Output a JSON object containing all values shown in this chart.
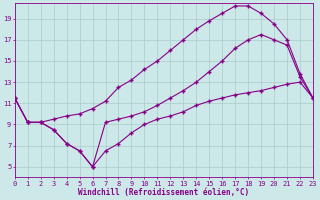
{
  "background_color": "#cce8e8",
  "grid_color": "#aacccc",
  "line_color": "#880088",
  "xlabel": "Windchill (Refroidissement éolien,°C)",
  "xlabel_fontsize": 5.5,
  "tick_fontsize": 5,
  "xmin": 0,
  "xmax": 23,
  "ymin": 4,
  "ymax": 20.5,
  "yticks": [
    5,
    7,
    9,
    11,
    13,
    15,
    17,
    19
  ],
  "xticks": [
    0,
    1,
    2,
    3,
    4,
    5,
    6,
    7,
    8,
    9,
    10,
    11,
    12,
    13,
    14,
    15,
    16,
    17,
    18,
    19,
    20,
    21,
    22,
    23
  ],
  "line1_x": [
    0,
    1,
    2,
    3,
    4,
    5,
    6,
    7,
    8,
    9,
    10,
    11,
    12,
    13,
    14,
    15,
    16,
    17,
    18,
    19,
    20,
    21,
    22,
    23
  ],
  "line1_y": [
    11.5,
    9.2,
    9.2,
    8.5,
    7.2,
    6.5,
    5.0,
    9.2,
    9.5,
    9.8,
    10.2,
    10.8,
    11.5,
    12.2,
    13.0,
    14.0,
    15.0,
    16.2,
    17.0,
    17.5,
    17.0,
    16.5,
    13.5,
    11.5
  ],
  "line2_x": [
    0,
    1,
    2,
    3,
    4,
    5,
    6,
    7,
    8,
    9,
    10,
    11,
    12,
    13,
    14,
    15,
    16,
    17,
    18,
    19,
    20,
    21,
    22,
    23
  ],
  "line2_y": [
    11.5,
    9.2,
    9.2,
    9.5,
    9.8,
    10.0,
    10.5,
    11.2,
    12.5,
    13.2,
    14.2,
    15.0,
    16.0,
    17.0,
    18.0,
    18.8,
    19.5,
    20.2,
    20.2,
    19.5,
    18.5,
    17.0,
    13.8,
    11.5
  ],
  "line3_x": [
    0,
    1,
    2,
    3,
    4,
    5,
    6,
    7,
    8,
    9,
    10,
    11,
    12,
    13,
    14,
    15,
    16,
    17,
    18,
    19,
    20,
    21,
    22,
    23
  ],
  "line3_y": [
    11.5,
    9.2,
    9.2,
    8.5,
    7.2,
    6.5,
    5.0,
    6.5,
    7.2,
    8.2,
    9.0,
    9.5,
    9.8,
    10.2,
    10.8,
    11.2,
    11.5,
    11.8,
    12.0,
    12.2,
    12.5,
    12.8,
    13.0,
    11.5
  ]
}
